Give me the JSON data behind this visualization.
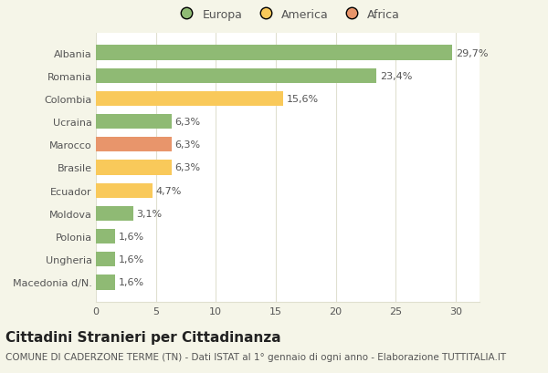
{
  "categories": [
    "Macedonia d/N.",
    "Ungheria",
    "Polonia",
    "Moldova",
    "Ecuador",
    "Brasile",
    "Marocco",
    "Ucraina",
    "Colombia",
    "Romania",
    "Albania"
  ],
  "values": [
    1.6,
    1.6,
    1.6,
    3.1,
    4.7,
    6.3,
    6.3,
    6.3,
    15.6,
    23.4,
    29.7
  ],
  "labels": [
    "1,6%",
    "1,6%",
    "1,6%",
    "3,1%",
    "4,7%",
    "6,3%",
    "6,3%",
    "6,3%",
    "15,6%",
    "23,4%",
    "29,7%"
  ],
  "colors": [
    "#8fba74",
    "#8fba74",
    "#8fba74",
    "#8fba74",
    "#f9c95a",
    "#f9c95a",
    "#e8956b",
    "#8fba74",
    "#f9c95a",
    "#8fba74",
    "#8fba74"
  ],
  "legend_labels": [
    "Europa",
    "America",
    "Africa"
  ],
  "legend_colors": [
    "#8fba74",
    "#f9c95a",
    "#e8956b"
  ],
  "xlim": [
    0,
    32
  ],
  "xticks": [
    0,
    5,
    10,
    15,
    20,
    25,
    30
  ],
  "title": "Cittadini Stranieri per Cittadinanza",
  "subtitle": "COMUNE DI CADERZONE TERME (TN) - Dati ISTAT al 1° gennaio di ogni anno - Elaborazione TUTTITALIA.IT",
  "bg_color": "#f5f5e8",
  "plot_bg_color": "#ffffff",
  "grid_color": "#e0e0d0",
  "text_color": "#555555",
  "label_color": "#555555",
  "title_fontsize": 11,
  "subtitle_fontsize": 7.5,
  "label_fontsize": 8,
  "tick_fontsize": 8,
  "legend_fontsize": 9,
  "bar_height": 0.65
}
